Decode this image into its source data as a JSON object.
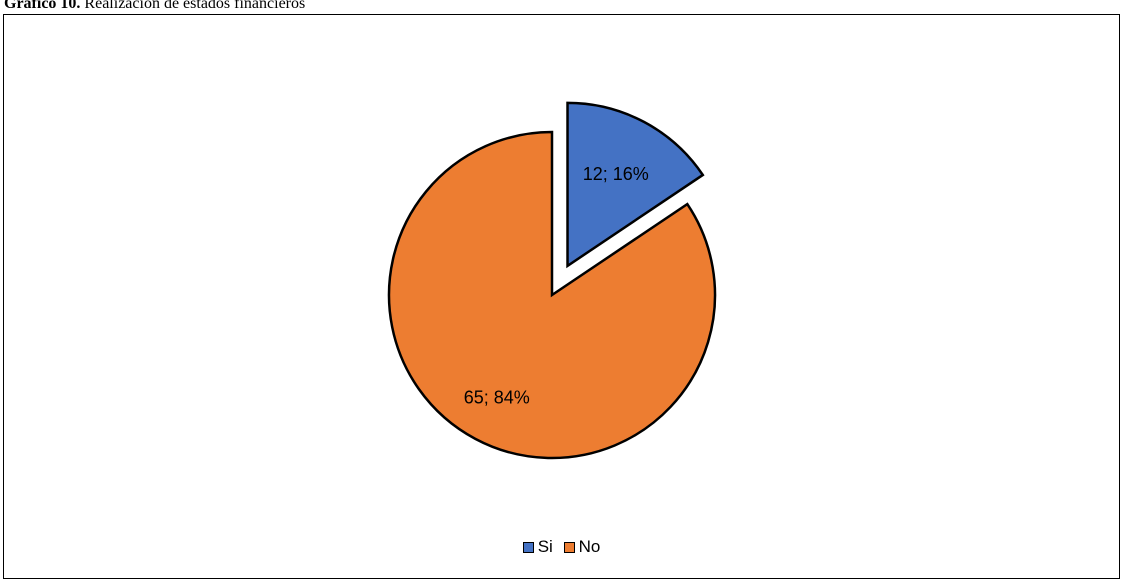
{
  "caption": {
    "prefix": "Gráfico 10.",
    "text": " Realización de estados financieros"
  },
  "chart_data": {
    "type": "pie",
    "categories": [
      "Si",
      "No"
    ],
    "values": [
      12,
      65
    ],
    "percent_labels": [
      "16%",
      "84%"
    ],
    "data_labels": [
      "12; 16%",
      "65; 84%"
    ],
    "colors": [
      "#4472C4",
      "#ED7D31"
    ],
    "exploded": [
      true,
      false
    ],
    "legend_position": "bottom",
    "title": ""
  }
}
